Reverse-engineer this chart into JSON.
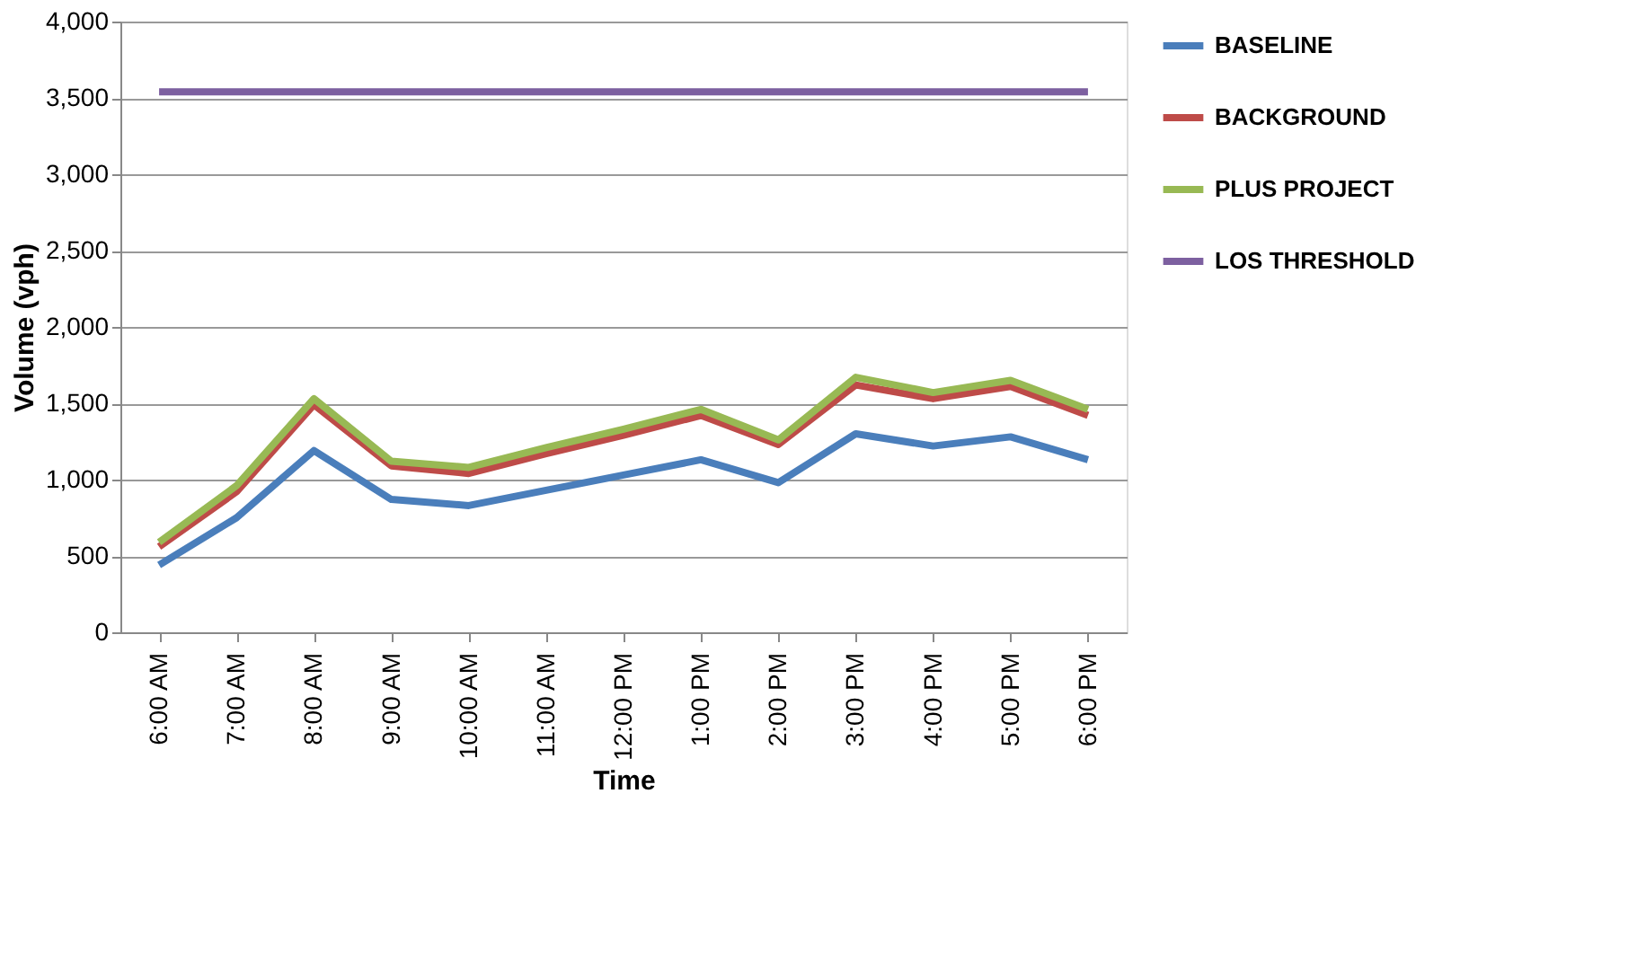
{
  "chart_data": {
    "type": "line",
    "xlabel": "Time",
    "ylabel": "Volume (vph)",
    "categories": [
      "6:00 AM",
      "7:00 AM",
      "8:00 AM",
      "9:00 AM",
      "10:00 AM",
      "11:00 AM",
      "12:00 PM",
      "1:00 PM",
      "2:00 PM",
      "3:00 PM",
      "4:00 PM",
      "5:00 PM",
      "6:00 PM"
    ],
    "series": [
      {
        "name": "BASELINE",
        "color": "#4a7ebb",
        "values": [
          440,
          750,
          1190,
          870,
          830,
          930,
          1030,
          1130,
          980,
          1300,
          1220,
          1280,
          1130
        ]
      },
      {
        "name": "BACKGROUND",
        "color": "#be4b48",
        "values": [
          560,
          920,
          1490,
          1090,
          1040,
          1170,
          1290,
          1420,
          1230,
          1620,
          1530,
          1610,
          1420
        ]
      },
      {
        "name": "PLUS PROJECT",
        "color": "#98b954",
        "values": [
          590,
          960,
          1530,
          1120,
          1080,
          1210,
          1330,
          1460,
          1260,
          1670,
          1570,
          1650,
          1460
        ]
      },
      {
        "name": "LOS THRESHOLD",
        "color": "#7d60a0",
        "values": [
          3540,
          3540,
          3540,
          3540,
          3540,
          3540,
          3540,
          3540,
          3540,
          3540,
          3540,
          3540,
          3540
        ]
      }
    ],
    "ylim": [
      0,
      4000
    ],
    "yticks": [
      {
        "value": 0,
        "label": "0"
      },
      {
        "value": 500,
        "label": "500"
      },
      {
        "value": 1000,
        "label": "1,000"
      },
      {
        "value": 1500,
        "label": "1,500"
      },
      {
        "value": 2000,
        "label": "2,000"
      },
      {
        "value": 2500,
        "label": "2,500"
      },
      {
        "value": 3000,
        "label": "3,000"
      },
      {
        "value": 3500,
        "label": "3,500"
      },
      {
        "value": 4000,
        "label": "4,000"
      }
    ],
    "grid": "y",
    "legend": "right",
    "marker": "none",
    "line_style": "solid"
  }
}
